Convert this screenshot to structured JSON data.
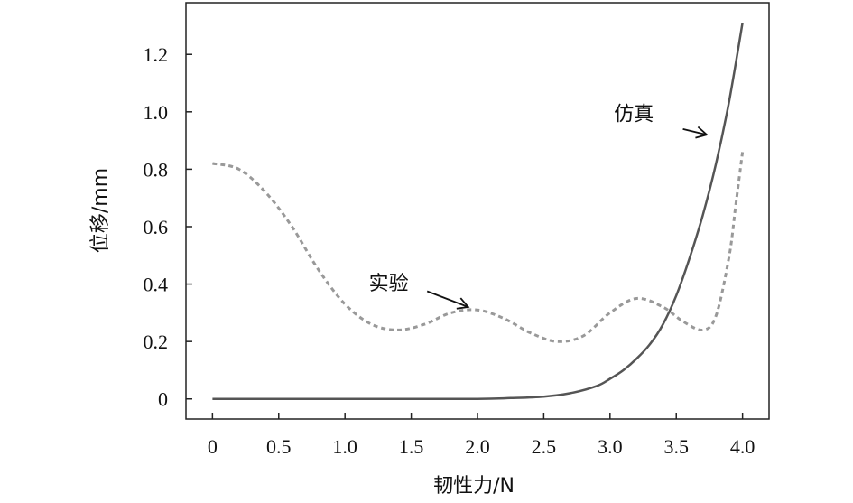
{
  "chart_data": {
    "type": "line",
    "xlabel": "韧性力/N",
    "ylabel": "位移/mm",
    "xlim": [
      -0.2,
      4.2
    ],
    "ylim": [
      -0.07,
      1.38
    ],
    "x_ticks": [
      "0",
      "0.5",
      "1.0",
      "1.5",
      "2.0",
      "2.5",
      "3.0",
      "3.5",
      "4.0"
    ],
    "y_ticks": [
      "0",
      "0.2",
      "0.4",
      "0.6",
      "0.8",
      "1.0",
      "1.2"
    ],
    "grid": false,
    "series": [
      {
        "name": "仿真",
        "style": "solid",
        "color": "#555555",
        "x": [
          0,
          0.5,
          1.0,
          1.5,
          2.0,
          2.25,
          2.5,
          2.7,
          2.9,
          3.0,
          3.1,
          3.2,
          3.3,
          3.4,
          3.5,
          3.6,
          3.7,
          3.8,
          3.9,
          4.0
        ],
        "y": [
          0,
          0,
          0,
          0,
          0,
          0.003,
          0.008,
          0.02,
          0.045,
          0.07,
          0.1,
          0.14,
          0.19,
          0.26,
          0.36,
          0.49,
          0.64,
          0.82,
          1.04,
          1.31
        ]
      },
      {
        "name": "实验",
        "style": "dashed",
        "color": "#999999",
        "x": [
          0,
          0.2,
          0.4,
          0.6,
          0.8,
          1.0,
          1.2,
          1.4,
          1.6,
          1.8,
          2.0,
          2.2,
          2.4,
          2.6,
          2.8,
          3.0,
          3.2,
          3.4,
          3.55,
          3.7,
          3.8,
          3.9,
          3.95,
          4.0
        ],
        "y": [
          0.82,
          0.8,
          0.72,
          0.6,
          0.45,
          0.33,
          0.26,
          0.24,
          0.26,
          0.3,
          0.31,
          0.28,
          0.23,
          0.2,
          0.22,
          0.3,
          0.35,
          0.32,
          0.27,
          0.24,
          0.29,
          0.5,
          0.68,
          0.86
        ]
      }
    ],
    "annotations": [
      {
        "text": "仿真",
        "series": 0
      },
      {
        "text": "实验",
        "series": 1
      }
    ]
  }
}
